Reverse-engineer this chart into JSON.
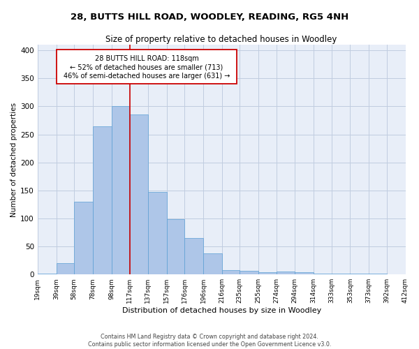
{
  "title1": "28, BUTTS HILL ROAD, WOODLEY, READING, RG5 4NH",
  "title2": "Size of property relative to detached houses in Woodley",
  "xlabel": "Distribution of detached houses by size in Woodley",
  "ylabel": "Number of detached properties",
  "footer1": "Contains HM Land Registry data © Crown copyright and database right 2024.",
  "footer2": "Contains public sector information licensed under the Open Government Licence v3.0.",
  "annotation_line1": "28 BUTTS HILL ROAD: 118sqm",
  "annotation_line2": "← 52% of detached houses are smaller (713)",
  "annotation_line3": "46% of semi-detached houses are larger (631) →",
  "property_value": 118,
  "bar_edges": [
    19,
    39,
    58,
    78,
    98,
    117,
    137,
    157,
    176,
    196,
    216,
    235,
    255,
    274,
    294,
    314,
    333,
    353,
    373,
    392,
    412
  ],
  "bar_heights": [
    1,
    20,
    130,
    265,
    300,
    285,
    147,
    99,
    65,
    38,
    8,
    6,
    4,
    5,
    4,
    1,
    1,
    1,
    1,
    0,
    1
  ],
  "bar_color": "#aec6e8",
  "bar_edge_color": "#5a9fd4",
  "property_line_color": "#cc0000",
  "annotation_box_color": "#cc0000",
  "background_color": "#ffffff",
  "plot_bg_color": "#e8eef8",
  "grid_color": "#c0cce0",
  "ylim": [
    0,
    410
  ],
  "yticks": [
    0,
    50,
    100,
    150,
    200,
    250,
    300,
    350,
    400
  ],
  "tick_labels": [
    "19sqm",
    "39sqm",
    "58sqm",
    "78sqm",
    "98sqm",
    "117sqm",
    "137sqm",
    "157sqm",
    "176sqm",
    "196sqm",
    "216sqm",
    "235sqm",
    "255sqm",
    "274sqm",
    "294sqm",
    "314sqm",
    "333sqm",
    "353sqm",
    "373sqm",
    "392sqm",
    "412sqm"
  ]
}
